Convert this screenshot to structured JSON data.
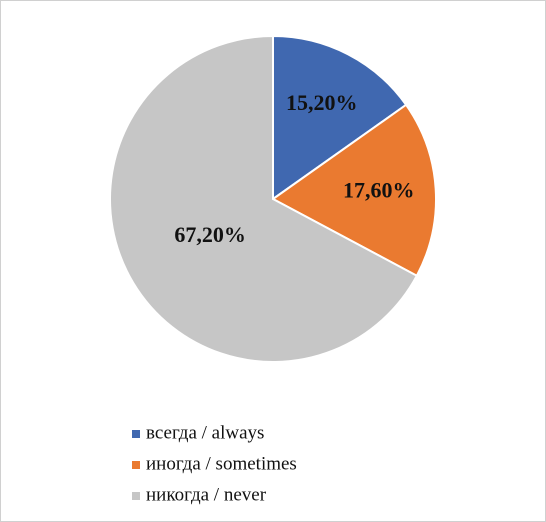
{
  "chart_data": {
    "type": "pie",
    "categories": [
      "всегда / always",
      "иногда / sometimes",
      "никогда / never"
    ],
    "values": [
      15.2,
      17.6,
      67.2
    ],
    "value_labels": [
      "15,20%",
      "17,60%",
      "67,20%"
    ],
    "colors": [
      "#4068b0",
      "#ea7a30",
      "#c6c6c6"
    ]
  }
}
